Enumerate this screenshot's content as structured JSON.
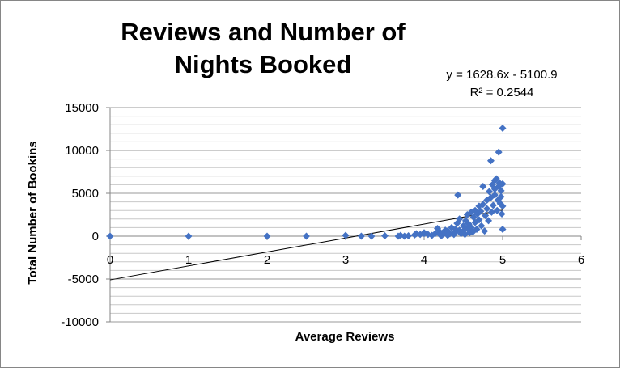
{
  "chart_data": {
    "type": "scatter",
    "title": "Reviews and Number of Nights Booked",
    "xlabel": "Average Reviews",
    "ylabel": "Total Number of Bookins",
    "xlim": [
      0,
      6
    ],
    "ylim": [
      -10000,
      15000
    ],
    "x_ticks": [
      "0",
      "1",
      "2",
      "3",
      "4",
      "5",
      "6"
    ],
    "y_ticks": [
      "-10000",
      "-5000",
      "0",
      "5000",
      "10000",
      "15000"
    ],
    "grid": true,
    "legend": "none",
    "marker_color": "#4472C4",
    "trendline": {
      "slope": 1628.6,
      "intercept": -5100.9,
      "equation": "y = 1628.6x - 5100.9",
      "r_squared": "R² = 0.2544",
      "x_range": [
        0,
        5
      ]
    },
    "points": [
      [
        0,
        0
      ],
      [
        1,
        0
      ],
      [
        2,
        0
      ],
      [
        2.5,
        0
      ],
      [
        3,
        100
      ],
      [
        3.2,
        0
      ],
      [
        3.33,
        0
      ],
      [
        3.5,
        50
      ],
      [
        3.67,
        0
      ],
      [
        3.7,
        100
      ],
      [
        3.75,
        0
      ],
      [
        3.8,
        50
      ],
      [
        3.88,
        150
      ],
      [
        3.9,
        300
      ],
      [
        3.95,
        200
      ],
      [
        4,
        400
      ],
      [
        4,
        300
      ],
      [
        4.05,
        200
      ],
      [
        4.1,
        100
      ],
      [
        4.14,
        300
      ],
      [
        4.17,
        900
      ],
      [
        4.2,
        500
      ],
      [
        4.2,
        200
      ],
      [
        4.22,
        50
      ],
      [
        4.25,
        400
      ],
      [
        4.27,
        700
      ],
      [
        4.3,
        100
      ],
      [
        4.3,
        600
      ],
      [
        4.33,
        300
      ],
      [
        4.35,
        1000
      ],
      [
        4.38,
        200
      ],
      [
        4.4,
        500
      ],
      [
        4.4,
        800
      ],
      [
        4.42,
        1500
      ],
      [
        4.43,
        4800
      ],
      [
        4.45,
        700
      ],
      [
        4.45,
        2000
      ],
      [
        4.47,
        300
      ],
      [
        4.5,
        1200
      ],
      [
        4.5,
        600
      ],
      [
        4.52,
        200
      ],
      [
        4.53,
        1800
      ],
      [
        4.55,
        2500
      ],
      [
        4.55,
        900
      ],
      [
        4.57,
        1400
      ],
      [
        4.58,
        400
      ],
      [
        4.6,
        2800
      ],
      [
        4.6,
        1000
      ],
      [
        4.62,
        500
      ],
      [
        4.63,
        2200
      ],
      [
        4.65,
        3000
      ],
      [
        4.65,
        1600
      ],
      [
        4.67,
        800
      ],
      [
        4.68,
        2600
      ],
      [
        4.7,
        3500
      ],
      [
        4.7,
        1900
      ],
      [
        4.72,
        2900
      ],
      [
        4.73,
        1200
      ],
      [
        4.75,
        5800
      ],
      [
        4.75,
        3700
      ],
      [
        4.77,
        600
      ],
      [
        4.78,
        2400
      ],
      [
        4.8,
        3200
      ],
      [
        4.8,
        4200
      ],
      [
        4.82,
        1800
      ],
      [
        4.83,
        5200
      ],
      [
        4.85,
        4500
      ],
      [
        4.85,
        8800
      ],
      [
        4.86,
        2800
      ],
      [
        4.87,
        6000
      ],
      [
        4.88,
        3600
      ],
      [
        4.9,
        6500
      ],
      [
        4.9,
        4800
      ],
      [
        4.9,
        5500
      ],
      [
        4.92,
        6700
      ],
      [
        4.93,
        3000
      ],
      [
        4.94,
        4200
      ],
      [
        4.95,
        9800
      ],
      [
        4.95,
        5800
      ],
      [
        4.96,
        6200
      ],
      [
        4.97,
        3800
      ],
      [
        4.98,
        4600
      ],
      [
        4.98,
        5300
      ],
      [
        5,
        12600
      ],
      [
        5,
        6100
      ],
      [
        5,
        3500
      ],
      [
        5,
        800
      ],
      [
        4.99,
        2600
      ]
    ]
  }
}
